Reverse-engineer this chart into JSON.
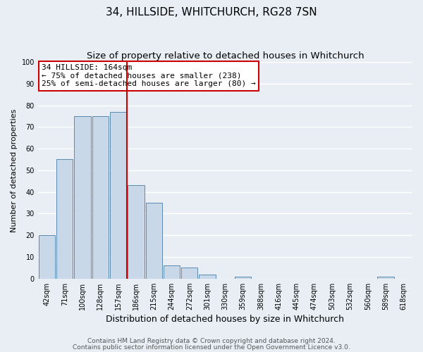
{
  "title": "34, HILLSIDE, WHITCHURCH, RG28 7SN",
  "subtitle": "Size of property relative to detached houses in Whitchurch",
  "xlabel": "Distribution of detached houses by size in Whitchurch",
  "ylabel": "Number of detached properties",
  "bar_color": "#c8d8e8",
  "bar_edge_color": "#5a8ab0",
  "background_color": "#e8eef4",
  "grid_color": "#ffffff",
  "bin_labels": [
    "42sqm",
    "71sqm",
    "100sqm",
    "128sqm",
    "157sqm",
    "186sqm",
    "215sqm",
    "244sqm",
    "272sqm",
    "301sqm",
    "330sqm",
    "359sqm",
    "388sqm",
    "416sqm",
    "445sqm",
    "474sqm",
    "503sqm",
    "532sqm",
    "560sqm",
    "589sqm",
    "618sqm"
  ],
  "bar_values": [
    20,
    55,
    75,
    75,
    77,
    43,
    35,
    6,
    5,
    2,
    0,
    1,
    0,
    0,
    0,
    0,
    0,
    0,
    0,
    1,
    0
  ],
  "vline_x": 4.5,
  "vline_color": "#cc0000",
  "annotation_title": "34 HILLSIDE: 164sqm",
  "annotation_line1": "← 75% of detached houses are smaller (238)",
  "annotation_line2": "25% of semi-detached houses are larger (80) →",
  "annotation_box_color": "#ffffff",
  "annotation_box_edge_color": "#cc0000",
  "ylim": [
    0,
    100
  ],
  "yticks": [
    0,
    10,
    20,
    30,
    40,
    50,
    60,
    70,
    80,
    90,
    100
  ],
  "footer1": "Contains HM Land Registry data © Crown copyright and database right 2024.",
  "footer2": "Contains public sector information licensed under the Open Government Licence v3.0.",
  "title_fontsize": 11,
  "subtitle_fontsize": 9.5,
  "xlabel_fontsize": 9,
  "ylabel_fontsize": 8,
  "tick_fontsize": 7,
  "annotation_fontsize": 8,
  "footer_fontsize": 6.5
}
